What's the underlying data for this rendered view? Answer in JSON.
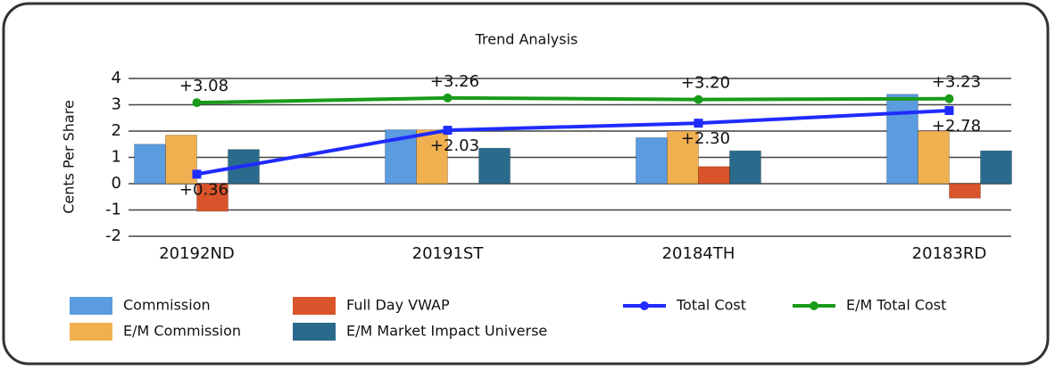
{
  "chart_data": {
    "type": "bar-line",
    "title": "Trend Analysis",
    "y_label": "Cents Per Share",
    "categories": [
      "20192ND",
      "20191ST",
      "20184TH",
      "20183RD"
    ],
    "ylim": [
      -2,
      4
    ],
    "yticks": [
      -2,
      -1,
      0,
      1,
      2,
      3,
      4
    ],
    "grid": true,
    "series": [
      {
        "name": "Commission",
        "type": "bar",
        "color": "#5b9be0",
        "values": [
          1.5,
          2.05,
          1.75,
          3.4
        ]
      },
      {
        "name": "E/M Commission",
        "type": "bar",
        "color": "#f0b050",
        "values": [
          1.85,
          2.05,
          2.0,
          2.0
        ]
      },
      {
        "name": "Full Day VWAP",
        "type": "bar",
        "color": "#d9542a",
        "values": [
          -1.05,
          0,
          0.65,
          -0.55
        ]
      },
      {
        "name": "E/M Market Impact Universe",
        "type": "bar",
        "color": "#2a6a8c",
        "values": [
          1.3,
          1.35,
          1.25,
          1.25
        ]
      },
      {
        "name": "Total Cost",
        "type": "line",
        "color": "#1f2bff",
        "values": [
          0.36,
          2.03,
          2.3,
          2.78
        ],
        "value_labels": [
          "+0.36",
          "+2.03",
          "+2.30",
          "+2.78"
        ]
      },
      {
        "name": "E/M Total Cost",
        "type": "line",
        "color": "#1a9a1a",
        "values": [
          3.08,
          3.26,
          3.2,
          3.23
        ],
        "value_labels": [
          "+3.08",
          "+3.26",
          "+3.20",
          "+3.23"
        ]
      }
    ]
  }
}
